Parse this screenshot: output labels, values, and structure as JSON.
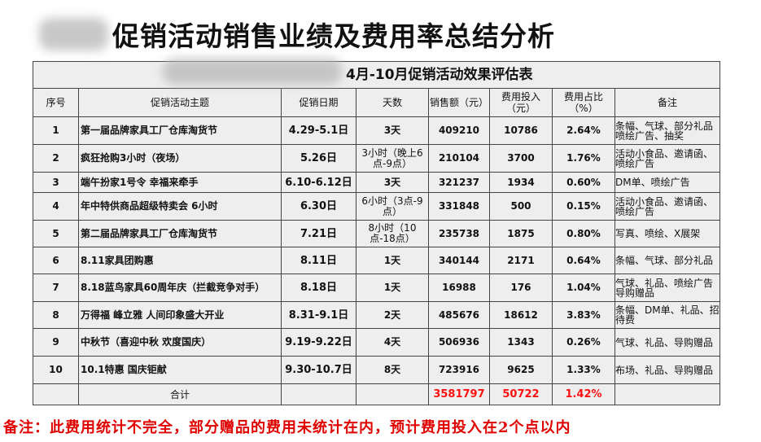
{
  "title": "促销活动销售业绩及费用率总结分析",
  "table": {
    "caption": "4月-10月促销活动效果评估表",
    "headers": [
      "序号",
      "促销活动主题",
      "促销日期",
      "天数",
      "销售额（元）",
      "费用投入（元）",
      "费用占比（%）",
      "备注"
    ],
    "rows": [
      {
        "no": "1",
        "theme": "第一届品牌家具工厂仓库淘货节",
        "date": "4.29-5.1日",
        "days": "3天",
        "sales": "409210",
        "cost": "10786",
        "ratio": "2.64%",
        "note": "条幅、气球、部分礼品喷绘广告、抽奖"
      },
      {
        "no": "2",
        "theme": "疯狂抢购3小时（夜场）",
        "date": "5.26日",
        "days": "3小时（晚上6点-9点）",
        "sales": "210104",
        "cost": "3700",
        "ratio": "1.76%",
        "note": "活动小食品、邀请函、喷绘广告"
      },
      {
        "no": "3",
        "theme": "端午扮家1号令 幸福来牵手",
        "date": "6.10-6.12日",
        "days": "3天",
        "sales": "321237",
        "cost": "1934",
        "ratio": "0.60%",
        "note": "DM单、喷绘广告"
      },
      {
        "no": "4",
        "theme": "年中特供商品超级特卖会 6小时",
        "date": "6.30日",
        "days": "6小时（3点-9点）",
        "sales": "331848",
        "cost": "500",
        "ratio": "0.15%",
        "note": "活动小食品、邀请函、喷绘广告"
      },
      {
        "no": "5",
        "theme": "第二届品牌家具工厂仓库淘货节",
        "date": "7.21日",
        "days": "8小时（10点-18点）",
        "sales": "235738",
        "cost": "1875",
        "ratio": "0.80%",
        "note": "写真、喷绘、X展架"
      },
      {
        "no": "6",
        "theme": "8.11家具团购惠",
        "date": "8.11日",
        "days": "1天",
        "sales": "340144",
        "cost": "2171",
        "ratio": "0.64%",
        "note": "条幅、气球、部分礼品"
      },
      {
        "no": "7",
        "theme": "8.18蓝鸟家具60周年庆（拦截竞争对手）",
        "date": "8.18日",
        "days": "1天",
        "sales": "16988",
        "cost": "176",
        "ratio": "1.04%",
        "note": "气球、礼品、喷绘广告导购赠品"
      },
      {
        "no": "8",
        "theme": "万得福 峰立雅 人间印象盛大开业",
        "date": "8.31-9.1日",
        "days": "2天",
        "sales": "485676",
        "cost": "18612",
        "ratio": "3.83%",
        "note": "条幅、DM单、礼品、招待费"
      },
      {
        "no": "9",
        "theme": "中秋节（喜迎中秋 欢度国庆）",
        "date": "9.19-9.22日",
        "days": "4天",
        "sales": "506936",
        "cost": "1343",
        "ratio": "0.26%",
        "note": "气球、礼品、导购赠品"
      },
      {
        "no": "10",
        "theme": "10.1特惠 国庆钜献",
        "date": "9.30-10.7日",
        "days": "8天",
        "sales": "723916",
        "cost": "9625",
        "ratio": "1.33%",
        "note": "布场、礼品、导购赠品"
      }
    ],
    "total": {
      "label": "合计",
      "sales": "3581797",
      "cost": "50722",
      "ratio": "1.42%"
    }
  },
  "footer_note": "备注：此费用统计不完全，部分赠品的费用未统计在内，预计费用投入在2个点以内",
  "colors": {
    "total": "#ff1111",
    "footer": "#e00000",
    "cell_bg": "#eeeeee"
  }
}
